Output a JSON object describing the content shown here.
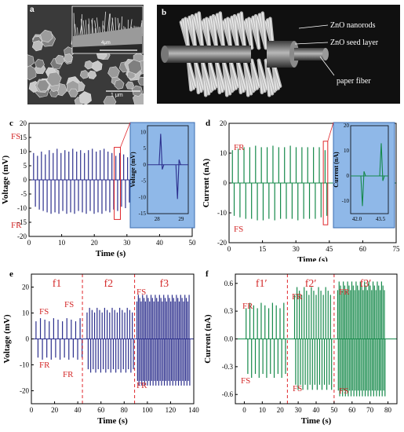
{
  "panels": {
    "a": {
      "label": "a",
      "inset_scale": "4μm",
      "main_scale": "1 μm"
    },
    "b": {
      "label": "b",
      "annotations": [
        "ZnO nanorods",
        "ZnO seed layer",
        "paper fiber"
      ]
    }
  },
  "chart_data": [
    {
      "id": "c",
      "type": "line",
      "label": "c",
      "xlabel": "Time (s)",
      "ylabel": "Voltage (mV)",
      "xlim": [
        0,
        50
      ],
      "ylim": [
        -20,
        20
      ],
      "xticks": [
        0,
        10,
        20,
        30,
        40,
        50
      ],
      "yticks": [
        -20,
        -15,
        -10,
        -5,
        0,
        5,
        10,
        15,
        20
      ],
      "color": "#2b2e8c",
      "annotations": [
        "FS",
        "FR"
      ],
      "spikes": {
        "times": [
          1.4,
          2.6,
          3.8,
          5.0,
          6.2,
          7.4,
          8.6,
          9.8,
          11.0,
          12.2,
          13.4,
          14.6,
          15.8,
          17.0,
          18.2,
          19.4,
          20.6,
          21.8,
          23.0,
          24.2,
          25.4,
          26.6,
          27.8,
          29.0,
          30.2
        ],
        "pos": [
          9.5,
          8.5,
          10,
          9,
          10.5,
          9.5,
          11,
          9.5,
          10.5,
          10,
          11,
          10,
          10.5,
          9.5,
          10.5,
          11,
          10,
          10.5,
          11,
          10,
          9.5,
          8.5,
          9.5,
          9,
          8
        ],
        "neg": [
          -9.5,
          -10.5,
          -11,
          -11.5,
          -12,
          -11.5,
          -12,
          -11,
          -12,
          -11.5,
          -12,
          -11,
          -11.5,
          -12,
          -11,
          -12,
          -11.5,
          -12,
          -11,
          -11.5,
          -10.5,
          -11,
          -9.5,
          -10,
          -8
        ]
      },
      "inset": {
        "xlim": [
          27.6,
          29.3
        ],
        "ylim": [
          -15,
          12
        ],
        "xticks": [
          28,
          29
        ],
        "yticks": [
          -15,
          -10,
          -5,
          0,
          5,
          10
        ],
        "ylabel": "Voltage (mV)",
        "spikes": {
          "times": [
            28.15,
            28.85
          ],
          "values": [
            9.5,
            -10.5
          ]
        }
      }
    },
    {
      "id": "d",
      "type": "line",
      "label": "d",
      "xlabel": "Time (s)",
      "ylabel": "Current (nA)",
      "xlim": [
        0,
        75
      ],
      "ylim": [
        -20,
        20
      ],
      "xticks": [
        0,
        15,
        30,
        45,
        60,
        75
      ],
      "yticks": [
        -20,
        -10,
        0,
        10,
        20
      ],
      "color": "#15894a",
      "annotations": [
        "FR",
        "FS"
      ],
      "spikes": {
        "times": [
          1.5,
          4.1,
          6.7,
          9.3,
          11.9,
          14.5,
          17.1,
          19.7,
          22.3,
          24.9,
          27.5,
          30.1,
          32.7,
          35.3,
          37.9,
          40.5,
          43.1
        ],
        "pos": [
          11,
          11.5,
          12,
          12,
          12.5,
          12,
          12,
          12.5,
          12,
          12,
          12.5,
          12,
          12,
          12,
          12,
          12,
          11
        ],
        "neg": [
          -11,
          -11.5,
          -12,
          -12,
          -12.5,
          -12.5,
          -12,
          -12.5,
          -12,
          -12,
          -12,
          -12.5,
          -12,
          -12,
          -12,
          -11.5,
          -11
        ]
      },
      "inset": {
        "xlim": [
          41.6,
          44.0
        ],
        "ylim": [
          -15,
          20
        ],
        "xticks": [
          42.0,
          43.5
        ],
        "yticks": [
          -10,
          0,
          10,
          20
        ],
        "ylabel": "Current (nA)",
        "spikes": {
          "times": [
            42.35,
            43.55
          ],
          "values": [
            -12,
            13
          ]
        }
      }
    },
    {
      "id": "e",
      "type": "line",
      "label": "e",
      "xlabel": "Time (s)",
      "ylabel": "Voltage (mV)",
      "xlim": [
        0,
        140
      ],
      "ylim": [
        -25,
        25
      ],
      "xticks": [
        0,
        20,
        40,
        60,
        80,
        100,
        120,
        140
      ],
      "yticks": [
        -20,
        -10,
        0,
        10,
        20
      ],
      "color": "#2b2e8c",
      "regions": [
        "f1",
        "f2",
        "f3"
      ],
      "region_bounds": [
        44,
        89
      ],
      "annotations": [
        "FS",
        "FR",
        "FS",
        "FR",
        "FS",
        "FR"
      ],
      "segments": [
        {
          "start": 4,
          "end": 42,
          "count": 11,
          "pos": 8,
          "neg": -8
        },
        {
          "start": 48,
          "end": 87,
          "count": 19,
          "pos": 12,
          "neg": -13
        },
        {
          "start": 91,
          "end": 136,
          "count": 38,
          "pos": 17,
          "neg": -18
        }
      ]
    },
    {
      "id": "f",
      "type": "line",
      "label": "f",
      "xlabel": "Time (s)",
      "ylabel": "Current (nA)",
      "xlim": [
        -5,
        85
      ],
      "ylim": [
        -0.7,
        0.7
      ],
      "xticks": [
        0,
        10,
        20,
        30,
        40,
        50,
        60,
        70,
        80
      ],
      "yticks": [
        -0.6,
        -0.3,
        0.0,
        0.3,
        0.6
      ],
      "color": "#15894a",
      "regions": [
        "f1′",
        "f2′",
        "f3′"
      ],
      "region_bounds": [
        24,
        50
      ],
      "annotations": [
        "FR",
        "FS",
        "FR",
        "FS",
        "FR",
        "FS"
      ],
      "segments": [
        {
          "start": 1,
          "end": 22,
          "count": 11,
          "pos": 0.39,
          "neg": -0.42
        },
        {
          "start": 28,
          "end": 48,
          "count": 16,
          "pos": 0.56,
          "neg": -0.55
        },
        {
          "start": 52,
          "end": 78,
          "count": 34,
          "pos": 0.62,
          "neg": -0.62
        }
      ]
    }
  ]
}
